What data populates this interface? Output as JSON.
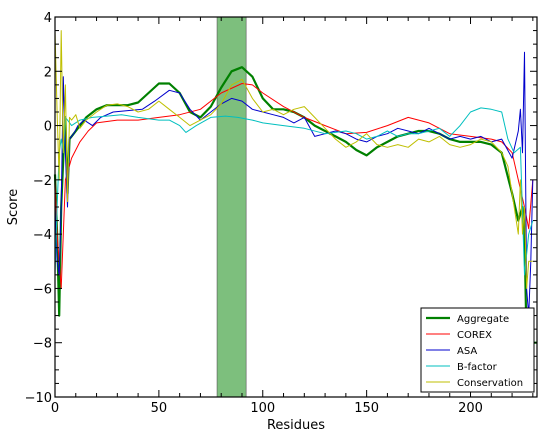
{
  "chart_data": {
    "type": "line",
    "title": "",
    "xlabel": "Residues",
    "ylabel": "Score",
    "xlim": [
      0,
      232
    ],
    "ylim": [
      -10,
      4
    ],
    "x_ticks": [
      0,
      50,
      100,
      150,
      200
    ],
    "x_tick_labels": [
      "0",
      "50",
      "100",
      "150",
      "200"
    ],
    "y_ticks": [
      4,
      2,
      0,
      -2,
      -4,
      -6,
      -8,
      -10
    ],
    "y_tick_labels": [
      "4",
      "2",
      "0",
      "−2",
      "−4",
      "−6",
      "−8",
      "−10"
    ],
    "grid": false,
    "legend_position": "lower-right",
    "highlight_region": {
      "x_start": 78,
      "x_end": 92,
      "color": "#7dbf7d"
    },
    "series": [
      {
        "name": "Aggregate",
        "color": "#008000",
        "width": 2.2,
        "points": [
          [
            0,
            -1.8
          ],
          [
            1,
            -4
          ],
          [
            2,
            -7
          ],
          [
            3,
            -3
          ],
          [
            4,
            -1.2
          ],
          [
            5,
            0.3
          ],
          [
            6,
            -2.5
          ],
          [
            7,
            -0.5
          ],
          [
            8,
            -0.4
          ],
          [
            10,
            -0.2
          ],
          [
            15,
            0.3
          ],
          [
            20,
            0.6
          ],
          [
            25,
            0.75
          ],
          [
            30,
            0.75
          ],
          [
            35,
            0.75
          ],
          [
            40,
            0.85
          ],
          [
            45,
            1.2
          ],
          [
            50,
            1.55
          ],
          [
            55,
            1.55
          ],
          [
            60,
            1.2
          ],
          [
            65,
            0.5
          ],
          [
            70,
            0.3
          ],
          [
            75,
            0.7
          ],
          [
            80,
            1.4
          ],
          [
            85,
            2.0
          ],
          [
            90,
            2.15
          ],
          [
            95,
            1.8
          ],
          [
            100,
            1.0
          ],
          [
            105,
            0.6
          ],
          [
            110,
            0.6
          ],
          [
            115,
            0.5
          ],
          [
            120,
            0.3
          ],
          [
            125,
            0.0
          ],
          [
            130,
            -0.2
          ],
          [
            135,
            -0.4
          ],
          [
            140,
            -0.6
          ],
          [
            145,
            -0.9
          ],
          [
            150,
            -1.1
          ],
          [
            155,
            -0.8
          ],
          [
            160,
            -0.6
          ],
          [
            165,
            -0.4
          ],
          [
            170,
            -0.3
          ],
          [
            175,
            -0.2
          ],
          [
            180,
            -0.2
          ],
          [
            185,
            -0.3
          ],
          [
            190,
            -0.5
          ],
          [
            195,
            -0.6
          ],
          [
            200,
            -0.6
          ],
          [
            205,
            -0.6
          ],
          [
            210,
            -0.7
          ],
          [
            215,
            -1.0
          ],
          [
            220,
            -2.5
          ],
          [
            223,
            -3.5
          ],
          [
            225,
            -3.0
          ],
          [
            226,
            -4.0
          ],
          [
            227,
            -8.0
          ],
          [
            228,
            -9.5
          ],
          [
            229,
            -8.5
          ],
          [
            230,
            -8.0
          ],
          [
            232,
            -8.0
          ]
        ]
      },
      {
        "name": "COREX",
        "color": "#ff0000",
        "width": 1.0,
        "points": [
          [
            0,
            -2
          ],
          [
            1,
            -4
          ],
          [
            3,
            -6
          ],
          [
            5,
            -2
          ],
          [
            8,
            -1.2
          ],
          [
            12,
            -0.6
          ],
          [
            16,
            -0.2
          ],
          [
            20,
            0.1
          ],
          [
            30,
            0.2
          ],
          [
            40,
            0.2
          ],
          [
            50,
            0.3
          ],
          [
            60,
            0.4
          ],
          [
            70,
            0.6
          ],
          [
            75,
            0.9
          ],
          [
            80,
            1.2
          ],
          [
            90,
            1.55
          ],
          [
            95,
            1.5
          ],
          [
            100,
            1.2
          ],
          [
            110,
            0.7
          ],
          [
            120,
            0.3
          ],
          [
            130,
            0.0
          ],
          [
            140,
            -0.3
          ],
          [
            150,
            -0.25
          ],
          [
            160,
            0.0
          ],
          [
            170,
            0.3
          ],
          [
            180,
            0.1
          ],
          [
            190,
            -0.3
          ],
          [
            200,
            -0.4
          ],
          [
            210,
            -0.5
          ],
          [
            215,
            -0.6
          ],
          [
            220,
            -1.0
          ],
          [
            223,
            -2.0
          ],
          [
            226,
            -3.0
          ],
          [
            228,
            -3.8
          ],
          [
            230,
            -2.0
          ]
        ]
      },
      {
        "name": "ASA",
        "color": "#0000cc",
        "width": 1.0,
        "points": [
          [
            0,
            -3
          ],
          [
            1,
            -5
          ],
          [
            2,
            -5.5
          ],
          [
            3,
            -3
          ],
          [
            4,
            1.8
          ],
          [
            5,
            -1
          ],
          [
            6,
            -3
          ],
          [
            7,
            -0.5
          ],
          [
            9,
            -0.3
          ],
          [
            11,
            0.0
          ],
          [
            14,
            0.2
          ],
          [
            18,
            0.0
          ],
          [
            22,
            0.3
          ],
          [
            28,
            0.5
          ],
          [
            35,
            0.55
          ],
          [
            42,
            0.6
          ],
          [
            48,
            0.9
          ],
          [
            55,
            1.3
          ],
          [
            60,
            1.2
          ],
          [
            65,
            0.6
          ],
          [
            70,
            0.2
          ],
          [
            75,
            0.5
          ],
          [
            80,
            0.8
          ],
          [
            85,
            1.0
          ],
          [
            90,
            0.9
          ],
          [
            95,
            0.6
          ],
          [
            100,
            0.5
          ],
          [
            105,
            0.4
          ],
          [
            110,
            0.3
          ],
          [
            115,
            0.1
          ],
          [
            120,
            0.3
          ],
          [
            125,
            -0.4
          ],
          [
            130,
            -0.3
          ],
          [
            135,
            -0.2
          ],
          [
            140,
            -0.3
          ],
          [
            145,
            -0.5
          ],
          [
            150,
            -0.6
          ],
          [
            155,
            -0.4
          ],
          [
            160,
            -0.3
          ],
          [
            165,
            -0.1
          ],
          [
            170,
            -0.2
          ],
          [
            175,
            -0.3
          ],
          [
            180,
            -0.1
          ],
          [
            185,
            -0.3
          ],
          [
            190,
            -0.5
          ],
          [
            195,
            -0.4
          ],
          [
            200,
            -0.5
          ],
          [
            205,
            -0.4
          ],
          [
            210,
            -0.6
          ],
          [
            215,
            -0.5
          ],
          [
            220,
            -1.2
          ],
          [
            223,
            -0.2
          ],
          [
            224,
            0.6
          ],
          [
            225,
            -1.0
          ],
          [
            226,
            2.7
          ],
          [
            227,
            -6.0
          ],
          [
            228,
            -7.0
          ],
          [
            229,
            -5.0
          ],
          [
            230,
            -2.0
          ]
        ]
      },
      {
        "name": "B-factor",
        "color": "#00bfbf",
        "width": 1.0,
        "points": [
          [
            0,
            -5.5
          ],
          [
            1,
            -3
          ],
          [
            2,
            -1
          ],
          [
            3,
            -0.5
          ],
          [
            4,
            -1
          ],
          [
            5,
            0.3
          ],
          [
            6,
            0.2
          ],
          [
            8,
            0.0
          ],
          [
            12,
            0.2
          ],
          [
            18,
            0.3
          ],
          [
            25,
            0.35
          ],
          [
            32,
            0.4
          ],
          [
            40,
            0.3
          ],
          [
            50,
            0.2
          ],
          [
            55,
            0.2
          ],
          [
            60,
            0.0
          ],
          [
            63,
            -0.25
          ],
          [
            68,
            0.0
          ],
          [
            75,
            0.3
          ],
          [
            82,
            0.35
          ],
          [
            88,
            0.3
          ],
          [
            95,
            0.2
          ],
          [
            100,
            0.1
          ],
          [
            110,
            0.0
          ],
          [
            120,
            -0.1
          ],
          [
            130,
            -0.3
          ],
          [
            140,
            -0.2
          ],
          [
            145,
            -0.3
          ],
          [
            150,
            -0.5
          ],
          [
            155,
            -0.4
          ],
          [
            160,
            -0.2
          ],
          [
            165,
            -0.4
          ],
          [
            170,
            -0.3
          ],
          [
            175,
            -0.3
          ],
          [
            180,
            -0.2
          ],
          [
            185,
            -0.1
          ],
          [
            190,
            -0.4
          ],
          [
            195,
            0.0
          ],
          [
            200,
            0.5
          ],
          [
            205,
            0.65
          ],
          [
            210,
            0.6
          ],
          [
            215,
            0.5
          ],
          [
            218,
            -0.5
          ],
          [
            221,
            -1.0
          ],
          [
            224,
            -0.8
          ],
          [
            226,
            -5.5
          ],
          [
            228,
            -4.0
          ],
          [
            230,
            -3.5
          ]
        ]
      },
      {
        "name": "Conservation",
        "color": "#bfbf00",
        "width": 1.0,
        "points": [
          [
            0,
            3.5
          ],
          [
            1,
            0.5
          ],
          [
            2,
            -2
          ],
          [
            3,
            3.5
          ],
          [
            4,
            -1
          ],
          [
            5,
            1.5
          ],
          [
            6,
            -2.8
          ],
          [
            7,
            0.3
          ],
          [
            8,
            0.2
          ],
          [
            10,
            0.4
          ],
          [
            12,
            -0.1
          ],
          [
            15,
            0.2
          ],
          [
            20,
            0.5
          ],
          [
            25,
            0.75
          ],
          [
            30,
            0.8
          ],
          [
            35,
            0.7
          ],
          [
            40,
            0.5
          ],
          [
            45,
            0.6
          ],
          [
            50,
            0.9
          ],
          [
            55,
            0.6
          ],
          [
            60,
            0.3
          ],
          [
            65,
            0.0
          ],
          [
            70,
            0.2
          ],
          [
            75,
            0.4
          ],
          [
            80,
            0.8
          ],
          [
            85,
            1.5
          ],
          [
            90,
            1.7
          ],
          [
            95,
            1.0
          ],
          [
            100,
            0.5
          ],
          [
            105,
            0.6
          ],
          [
            110,
            0.4
          ],
          [
            115,
            0.6
          ],
          [
            120,
            0.7
          ],
          [
            125,
            0.3
          ],
          [
            130,
            -0.1
          ],
          [
            135,
            -0.5
          ],
          [
            140,
            -0.8
          ],
          [
            145,
            -0.6
          ],
          [
            150,
            -0.3
          ],
          [
            155,
            -0.7
          ],
          [
            160,
            -0.8
          ],
          [
            165,
            -0.7
          ],
          [
            170,
            -0.8
          ],
          [
            175,
            -0.5
          ],
          [
            180,
            -0.6
          ],
          [
            185,
            -0.4
          ],
          [
            190,
            -0.7
          ],
          [
            195,
            -0.8
          ],
          [
            200,
            -0.7
          ],
          [
            205,
            -0.5
          ],
          [
            210,
            -0.6
          ],
          [
            215,
            -1.0
          ],
          [
            218,
            -1.5
          ],
          [
            220,
            -2.5
          ],
          [
            223,
            -4.0
          ],
          [
            224,
            -2.0
          ],
          [
            225,
            -4.0
          ],
          [
            226,
            -3.0
          ],
          [
            227,
            -6.0
          ],
          [
            228,
            -5.0
          ],
          [
            230,
            -5.0
          ]
        ]
      }
    ]
  }
}
